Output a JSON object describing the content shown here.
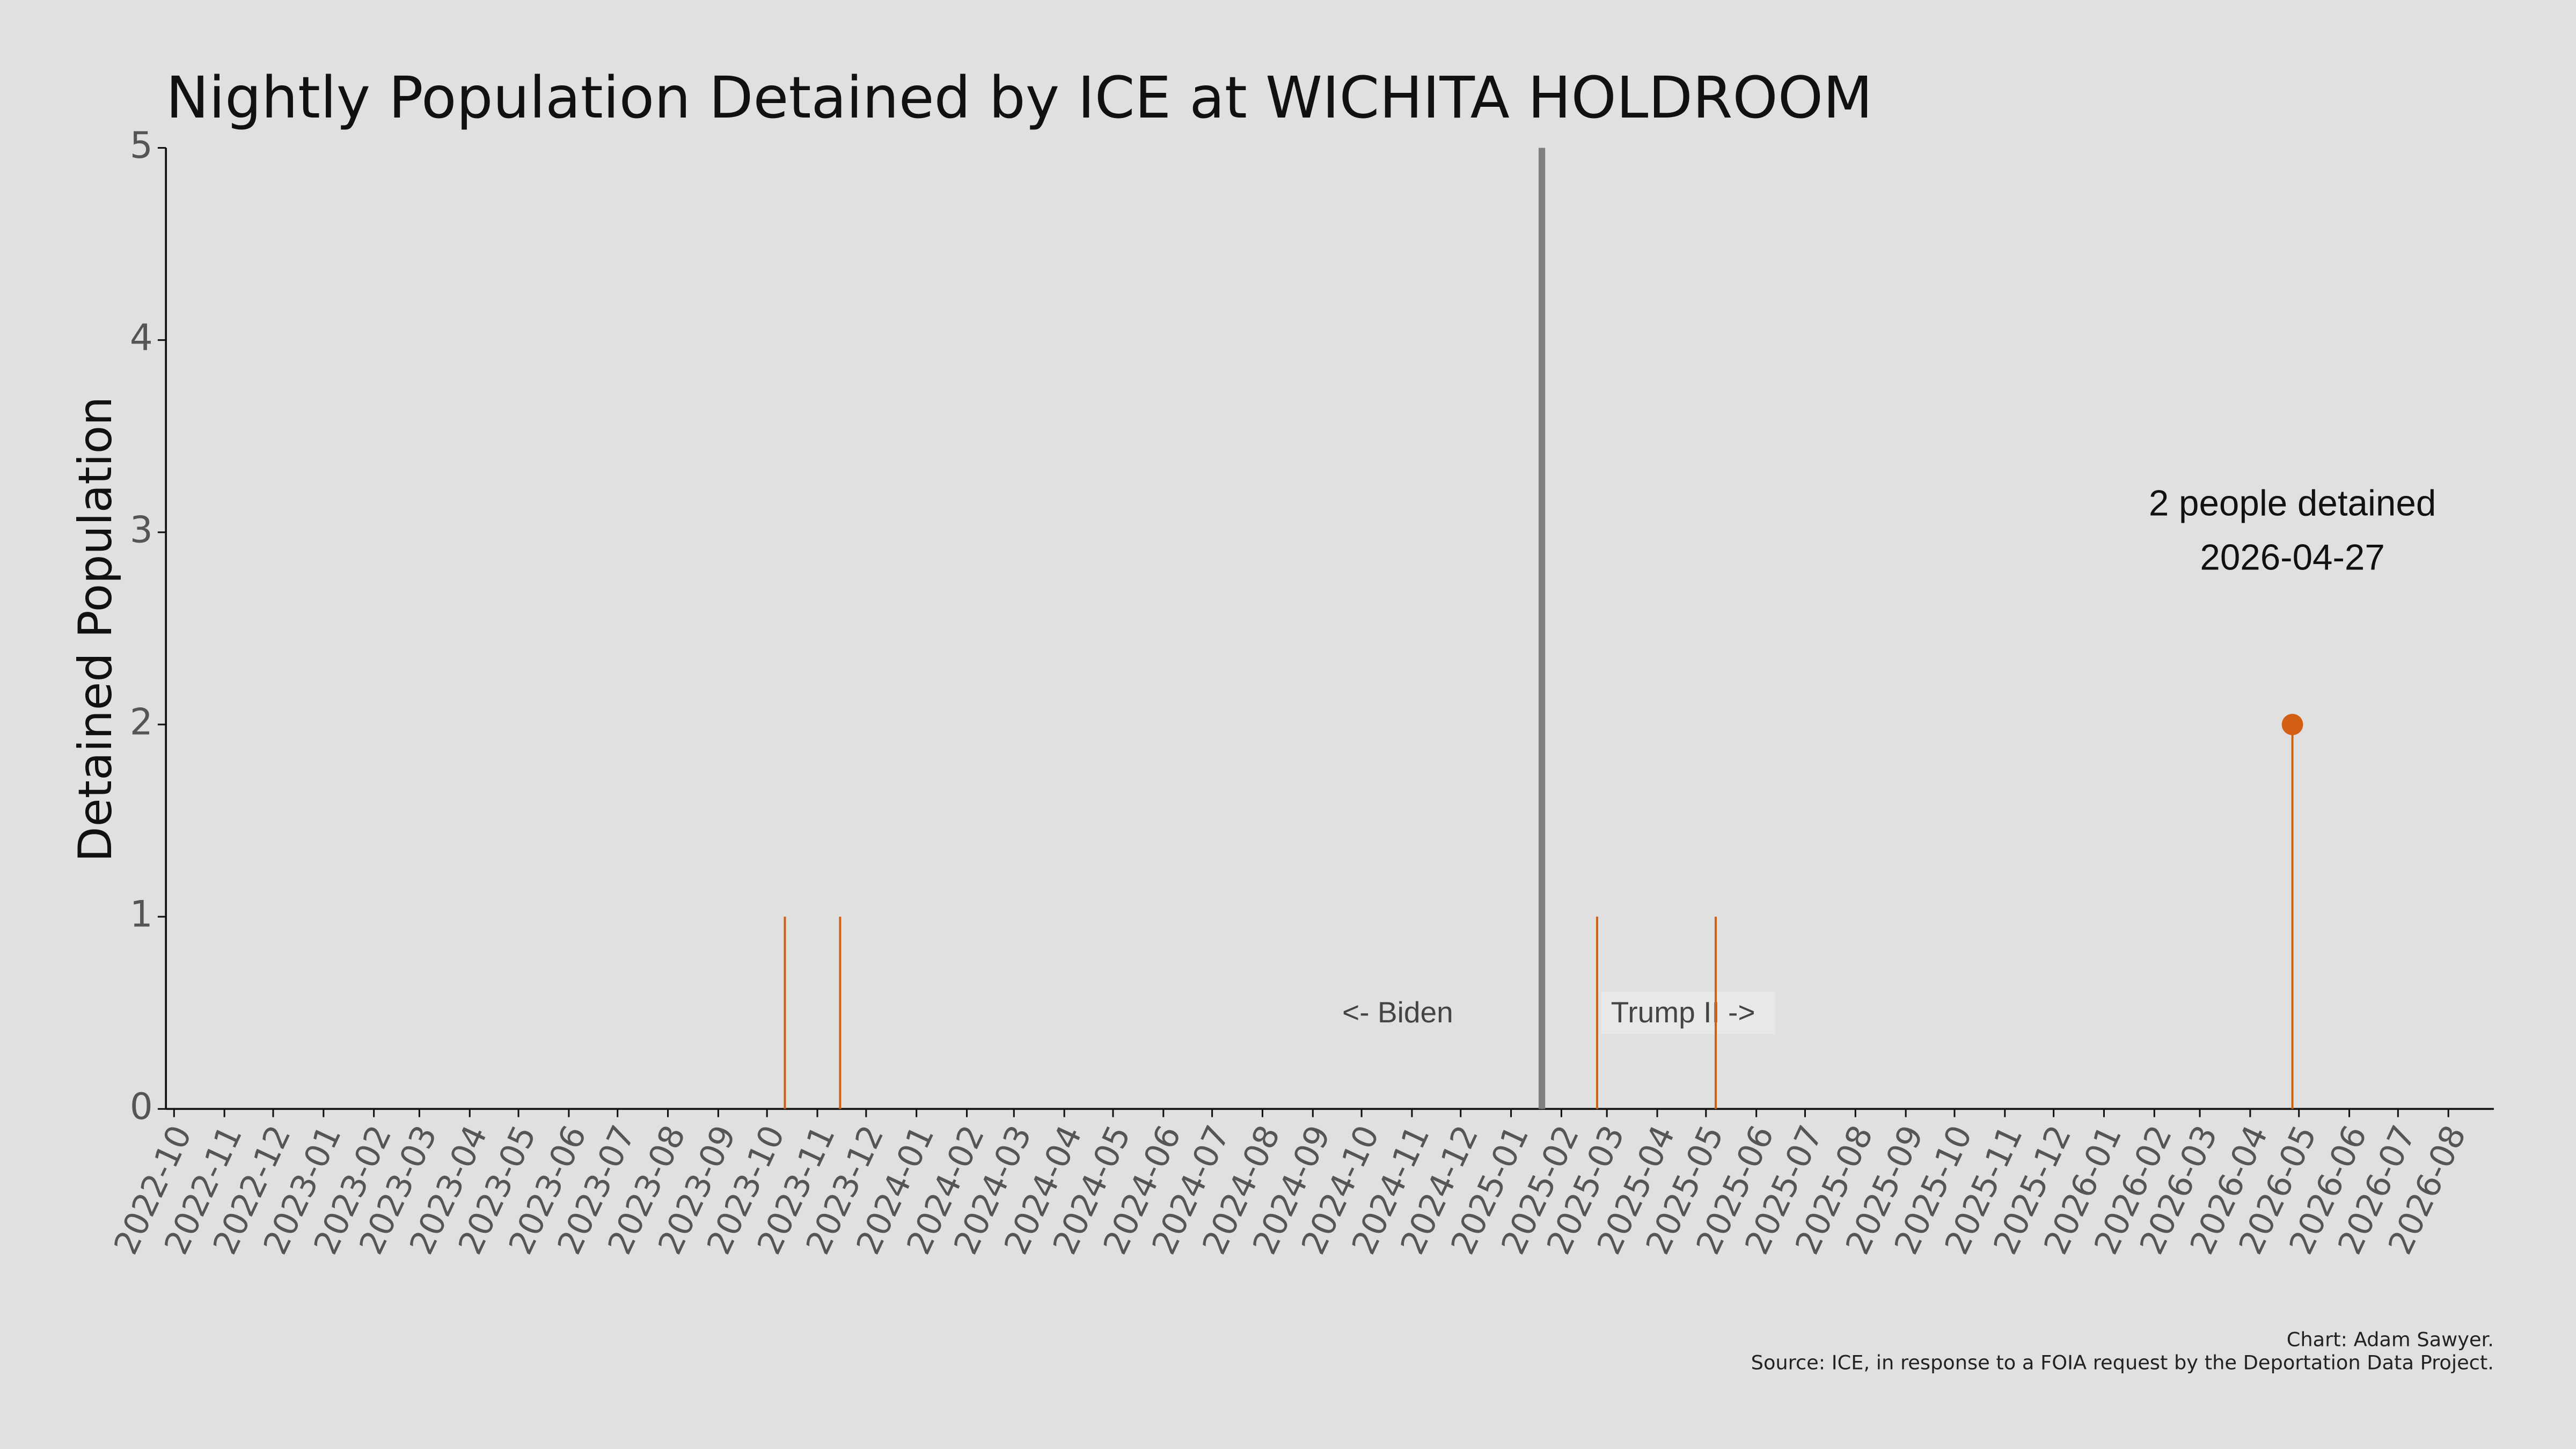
{
  "chart_data": {
    "type": "stem",
    "title": "Nightly Population Detained by ICE at WICHITA HOLDROOM",
    "y_label": "Detained Population",
    "x": [
      "2023-10-12",
      "2023-11-15",
      "2025-02-23",
      "2025-05-07",
      "2026-04-27"
    ],
    "values": [
      1,
      1,
      1,
      1,
      2
    ],
    "color": "#d35f14",
    "xlim": [
      "2022-09-26",
      "2026-08-29"
    ],
    "xticks": [
      "2022-10",
      "2022-11",
      "2022-12",
      "2023-01",
      "2023-02",
      "2023-03",
      "2023-04",
      "2023-05",
      "2023-06",
      "2023-07",
      "2023-08",
      "2023-09",
      "2023-10",
      "2023-11",
      "2023-12",
      "2024-01",
      "2024-02",
      "2024-03",
      "2024-04",
      "2024-05",
      "2024-06",
      "2024-07",
      "2024-08",
      "2024-09",
      "2024-10",
      "2024-11",
      "2024-12",
      "2025-01",
      "2025-02",
      "2025-03",
      "2025-04",
      "2025-05",
      "2025-06",
      "2025-07",
      "2025-08",
      "2025-09",
      "2025-10",
      "2025-11",
      "2025-12",
      "2026-01",
      "2026-02",
      "2026-03",
      "2026-04",
      "2026-05",
      "2026-06",
      "2026-07",
      "2026-08"
    ],
    "ylim": [
      0,
      5
    ],
    "yticks": [
      0,
      1,
      2,
      3,
      4,
      5
    ],
    "vline": {
      "x": "2025-01-20",
      "color": "#808080"
    },
    "period_labels": [
      "<- Biden",
      "Trump II ->"
    ],
    "annotation": [
      "2 people detained",
      "2026-04-27"
    ],
    "caption": [
      "Chart: Adam Sawyer.",
      "Source: ICE, in response to a FOIA request by the Deportation Data Project."
    ]
  }
}
